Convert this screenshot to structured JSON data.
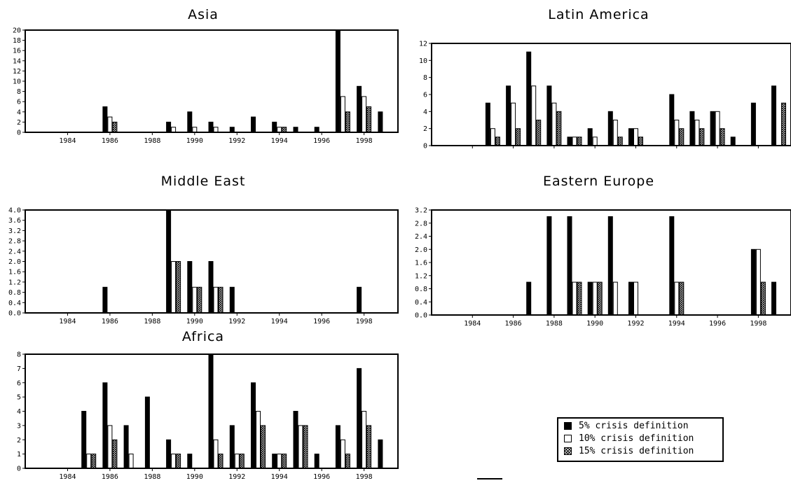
{
  "colors": {
    "series5": "#000000",
    "series10": "#ffffff",
    "series15": "hatch"
  },
  "legend": {
    "items": [
      {
        "label": "5% crisis definition",
        "swatch": "black"
      },
      {
        "label": "10% crisis definition",
        "swatch": "white"
      },
      {
        "label": "15% crisis definition",
        "swatch": "hatch"
      }
    ]
  },
  "chart_data": [
    {
      "type": "bar",
      "title": "Asia",
      "xlabel": "",
      "ylabel": "",
      "x_range": [
        1982,
        1999.6
      ],
      "ylim": [
        0,
        20
      ],
      "yticks": [
        "0",
        "2",
        "4",
        "6",
        "8",
        "10",
        "12",
        "14",
        "16",
        "18",
        "20"
      ],
      "ytick_values": [
        0,
        2,
        4,
        6,
        8,
        10,
        12,
        14,
        16,
        18,
        20
      ],
      "xticks": [
        "1984",
        "1986",
        "1988",
        "1990",
        "1992",
        "1994",
        "1996",
        "1998"
      ],
      "xtick_values": [
        1984,
        1986,
        1988,
        1990,
        1992,
        1994,
        1996,
        1998
      ],
      "x": [
        1985,
        1986,
        1987,
        1988,
        1989,
        1990,
        1991,
        1992,
        1993,
        1994,
        1995,
        1996,
        1997,
        1998,
        1999
      ],
      "series": [
        {
          "name": "5% crisis definition",
          "values": [
            0,
            5,
            0,
            0,
            2,
            4,
            2,
            1,
            3,
            2,
            1,
            1,
            20,
            9,
            4
          ]
        },
        {
          "name": "10% crisis definition",
          "values": [
            0,
            3,
            0,
            0,
            1,
            1,
            1,
            0,
            0,
            1,
            0,
            0,
            7,
            7,
            0
          ]
        },
        {
          "name": "15% crisis definition",
          "values": [
            0,
            2,
            0,
            0,
            0,
            0,
            0,
            0,
            0,
            1,
            0,
            0,
            4,
            5,
            0
          ]
        }
      ]
    },
    {
      "type": "bar",
      "title": "Latin America",
      "xlabel": "",
      "ylabel": "",
      "x_range": [
        1982,
        1999.6
      ],
      "ylim": [
        0,
        12
      ],
      "yticks": [
        "0",
        "2",
        "4",
        "6",
        "8",
        "10",
        "12"
      ],
      "ytick_values": [
        0,
        2,
        4,
        6,
        8,
        10,
        12
      ],
      "xticks": [
        "1984",
        "1986",
        "1988",
        "1990",
        "1992",
        "1994",
        "1996",
        "1998"
      ],
      "xtick_values": [
        1984,
        1986,
        1988,
        1990,
        1992,
        1994,
        1996,
        1998
      ],
      "x": [
        1985,
        1986,
        1987,
        1988,
        1989,
        1990,
        1991,
        1992,
        1993,
        1994,
        1995,
        1996,
        1997,
        1998,
        1999
      ],
      "series": [
        {
          "name": "5% crisis definition",
          "values": [
            5,
            7,
            11,
            7,
            1,
            2,
            4,
            2,
            0,
            6,
            4,
            4,
            1,
            5,
            7
          ]
        },
        {
          "name": "10% crisis definition",
          "values": [
            2,
            5,
            7,
            5,
            1,
            1,
            3,
            2,
            0,
            3,
            3,
            4,
            0,
            0,
            0
          ]
        },
        {
          "name": "15% crisis definition",
          "values": [
            1,
            2,
            3,
            4,
            1,
            0,
            1,
            1,
            0,
            2,
            2,
            2,
            0,
            0,
            5
          ]
        }
      ]
    },
    {
      "type": "bar",
      "title": "Middle East",
      "xlabel": "",
      "ylabel": "",
      "x_range": [
        1982,
        1999.6
      ],
      "ylim": [
        0,
        4
      ],
      "yticks": [
        "0.0",
        "0.4",
        "0.8",
        "1.2",
        "1.6",
        "2.0",
        "2.4",
        "2.8",
        "3.2",
        "3.6",
        "4.0"
      ],
      "ytick_values": [
        0,
        0.4,
        0.8,
        1.2,
        1.6,
        2.0,
        2.4,
        2.8,
        3.2,
        3.6,
        4.0
      ],
      "xticks": [
        "1984",
        "1986",
        "1988",
        "1990",
        "1992",
        "1994",
        "1996",
        "1998"
      ],
      "xtick_values": [
        1984,
        1986,
        1988,
        1990,
        1992,
        1994,
        1996,
        1998
      ],
      "x": [
        1985,
        1986,
        1987,
        1988,
        1989,
        1990,
        1991,
        1992,
        1993,
        1994,
        1995,
        1996,
        1997,
        1998,
        1999
      ],
      "series": [
        {
          "name": "5% crisis definition",
          "values": [
            0,
            1,
            0,
            0,
            4,
            2,
            2,
            1,
            0,
            0,
            0,
            0,
            0,
            1,
            0
          ]
        },
        {
          "name": "10% crisis definition",
          "values": [
            0,
            0,
            0,
            0,
            2,
            1,
            1,
            0,
            0,
            0,
            0,
            0,
            0,
            0,
            0
          ]
        },
        {
          "name": "15% crisis definition",
          "values": [
            0,
            0,
            0,
            0,
            2,
            1,
            1,
            0,
            0,
            0,
            0,
            0,
            0,
            0,
            0
          ]
        }
      ]
    },
    {
      "type": "bar",
      "title": "Eastern Europe",
      "xlabel": "",
      "ylabel": "",
      "x_range": [
        1982,
        1999.6
      ],
      "ylim": [
        0,
        3.2
      ],
      "yticks": [
        "0.0",
        "0.4",
        "0.8",
        "1.2",
        "1.6",
        "2.0",
        "2.4",
        "2.8",
        "3.2"
      ],
      "ytick_values": [
        0,
        0.4,
        0.8,
        1.2,
        1.6,
        2.0,
        2.4,
        2.8,
        3.2
      ],
      "xticks": [
        "1984",
        "1986",
        "1988",
        "1990",
        "1992",
        "1994",
        "1996",
        "1998"
      ],
      "xtick_values": [
        1984,
        1986,
        1988,
        1990,
        1992,
        1994,
        1996,
        1998
      ],
      "x": [
        1985,
        1986,
        1987,
        1988,
        1989,
        1990,
        1991,
        1992,
        1993,
        1994,
        1995,
        1996,
        1997,
        1998,
        1999
      ],
      "series": [
        {
          "name": "5% crisis definition",
          "values": [
            0,
            0,
            1,
            3,
            3,
            1,
            3,
            1,
            0,
            3,
            0,
            0,
            0,
            2,
            1
          ]
        },
        {
          "name": "10% crisis definition",
          "values": [
            0,
            0,
            0,
            0,
            1,
            1,
            1,
            1,
            0,
            1,
            0,
            0,
            0,
            2,
            0
          ]
        },
        {
          "name": "15% crisis definition",
          "values": [
            0,
            0,
            0,
            0,
            1,
            1,
            0,
            0,
            0,
            1,
            0,
            0,
            0,
            1,
            0
          ]
        }
      ]
    },
    {
      "type": "bar",
      "title": "Africa",
      "xlabel": "",
      "ylabel": "",
      "x_range": [
        1982,
        1999.6
      ],
      "ylim": [
        0,
        8
      ],
      "yticks": [
        "0",
        "1",
        "2",
        "3",
        "4",
        "5",
        "6",
        "7",
        "8"
      ],
      "ytick_values": [
        0,
        1,
        2,
        3,
        4,
        5,
        6,
        7,
        8
      ],
      "xticks": [
        "1984",
        "1986",
        "1988",
        "1990",
        "1992",
        "1994",
        "1996",
        "1998"
      ],
      "xtick_values": [
        1984,
        1986,
        1988,
        1990,
        1992,
        1994,
        1996,
        1998
      ],
      "x": [
        1985,
        1986,
        1987,
        1988,
        1989,
        1990,
        1991,
        1992,
        1993,
        1994,
        1995,
        1996,
        1997,
        1998,
        1999
      ],
      "series": [
        {
          "name": "5% crisis definition",
          "values": [
            4,
            6,
            3,
            5,
            2,
            1,
            8,
            3,
            6,
            1,
            4,
            1,
            3,
            7,
            2
          ]
        },
        {
          "name": "10% crisis definition",
          "values": [
            1,
            3,
            1,
            0,
            1,
            0,
            2,
            1,
            4,
            1,
            3,
            0,
            2,
            4,
            0
          ]
        },
        {
          "name": "15% crisis definition",
          "values": [
            1,
            2,
            0,
            0,
            1,
            0,
            1,
            1,
            3,
            1,
            3,
            0,
            1,
            3,
            0
          ]
        }
      ]
    }
  ]
}
